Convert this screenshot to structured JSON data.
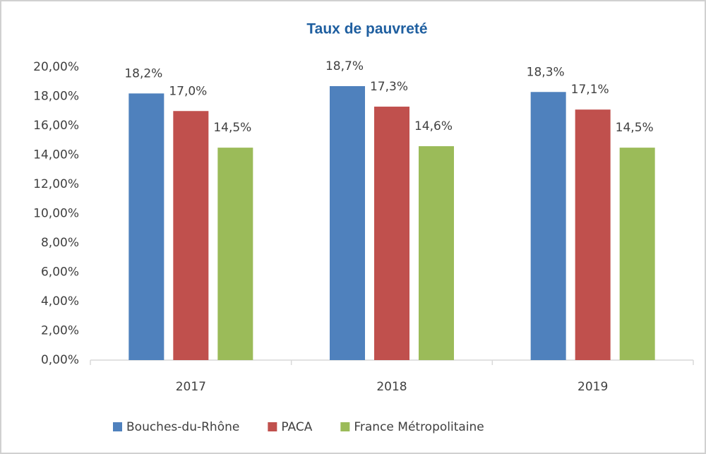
{
  "chart_data": {
    "type": "bar",
    "title": "Taux de pauvreté",
    "categories": [
      "2017",
      "2018",
      "2019"
    ],
    "series": [
      {
        "name": "Bouches-du-Rhône",
        "color": "#4f81bd",
        "values": [
          18.2,
          18.7,
          18.3
        ],
        "value_labels": [
          "18,2%",
          "18,7%",
          "18,3%"
        ]
      },
      {
        "name": "PACA",
        "color": "#c0504d",
        "values": [
          17.0,
          17.3,
          17.1
        ],
        "value_labels": [
          "17,0%",
          "17,3%",
          "17,1%"
        ]
      },
      {
        "name": "France Métropolitaine",
        "color": "#9bbb59",
        "values": [
          14.5,
          14.6,
          14.5
        ],
        "value_labels": [
          "14,5%",
          "14,6%",
          "14,5%"
        ]
      }
    ],
    "ylim": [
      0,
      20
    ],
    "yticks": [
      {
        "value": 0,
        "label": "0,00%"
      },
      {
        "value": 2,
        "label": "2,00%"
      },
      {
        "value": 4,
        "label": "4,00%"
      },
      {
        "value": 6,
        "label": "6,00%"
      },
      {
        "value": 8,
        "label": "8,00%"
      },
      {
        "value": 10,
        "label": "10,00%"
      },
      {
        "value": 12,
        "label": "12,00%"
      },
      {
        "value": 14,
        "label": "14,00%"
      },
      {
        "value": 16,
        "label": "16,00%"
      },
      {
        "value": 18,
        "label": "18,00%"
      },
      {
        "value": 20,
        "label": "20,00%"
      }
    ],
    "legend": "bottom"
  }
}
